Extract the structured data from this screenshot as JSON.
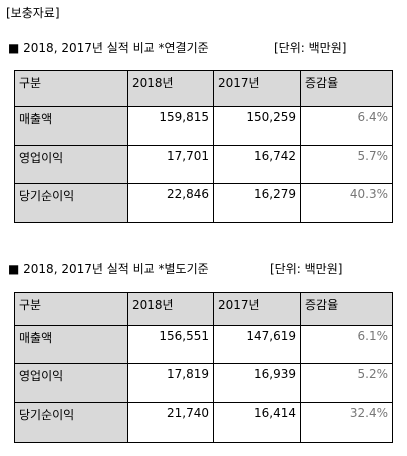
{
  "header": {
    "title": "[보충자료]"
  },
  "sections": [
    {
      "title": "■ 2018, 2017년 실적 비교 *연결기준",
      "unit": "[단위: 백만원]",
      "table": {
        "columns": [
          "구분",
          "2018년",
          "2017년",
          "증감율"
        ],
        "rows": [
          [
            "매출액",
            "159,815",
            "150,259",
            "6.4%"
          ],
          [
            "영업이익",
            "17,701",
            "16,742",
            "5.7%"
          ],
          [
            "당기순이익",
            "22,846",
            "16,279",
            "40.3%"
          ]
        ]
      }
    },
    {
      "title": "■ 2018, 2017년 실적 비교 *별도기준",
      "unit": "[단위: 백만원]",
      "table": {
        "columns": [
          "구분",
          "2018년",
          "2017년",
          "증감율"
        ],
        "rows": [
          [
            "매출액",
            "156,551",
            "147,619",
            "6.1%"
          ],
          [
            "영업이익",
            "17,819",
            "16,939",
            "5.2%"
          ],
          [
            "당기순이익",
            "21,740",
            "16,414",
            "32.4%"
          ]
        ]
      }
    }
  ]
}
